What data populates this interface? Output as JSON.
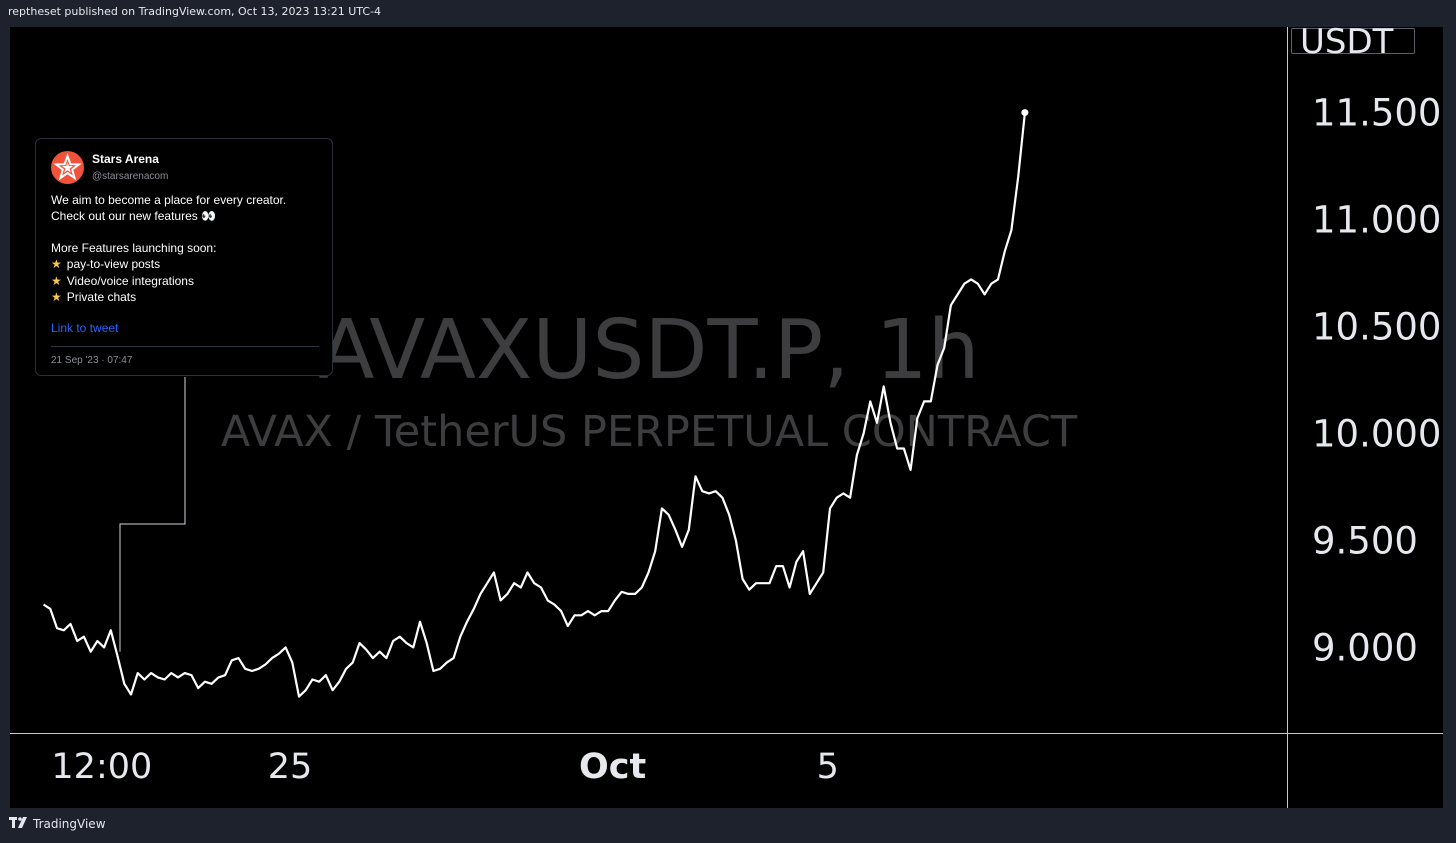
{
  "header": {
    "published_text": "reptheset published on TradingView.com, Oct 13, 2023 13:21 UTC-4"
  },
  "footer": {
    "brand": "TradingView",
    "logo_icon": "tradingview-logo-icon"
  },
  "watermark": {
    "symbol": "AVAXUSDT.P, 1h",
    "description": "AVAX / TetherUS PERPETUAL CONTRACT"
  },
  "price_scale": {
    "currency": "USDT"
  },
  "tweet": {
    "name": "Stars Arena",
    "handle": "@starsarenacom",
    "lines": [
      "We aim to become a place for every creator.",
      "Check out our new features 👀",
      "More Features launching soon:",
      "pay-to-view posts",
      "Video/voice integrations",
      "Private chats"
    ],
    "bullet_icon": "star-icon",
    "link_text": "Link to tweet",
    "date": "21 Sep '23 · 07:47",
    "avatar_icon": "stars-arena-logo-icon",
    "avatar_color": "#f0533a",
    "link_color": "#2962ff"
  },
  "colors": {
    "background": "#000000",
    "frame": "#1e222d",
    "line": "#ffffff",
    "watermark": "#3d3d3f"
  },
  "chart_data": {
    "type": "line",
    "title": "AVAXUSDT.P, 1h",
    "subtitle": "AVAX / TetherUS PERPETUAL CONTRACT",
    "ylabel": "USDT",
    "ylim": [
      8.6,
      11.9
    ],
    "y_ticks": [
      9.0,
      9.5,
      10.0,
      10.5,
      11.0,
      11.5
    ],
    "y_tick_labels": [
      "9.000",
      "9.500",
      "10.000",
      "10.500",
      "11.000",
      "11.500"
    ],
    "x_range": [
      "2023-09-19T19:00",
      "2023-10-13T13:00"
    ],
    "x_ticks": [
      {
        "label": "12:00",
        "t": "2023-09-21T12:00"
      },
      {
        "label": "25",
        "t": "2023-09-25T00:00"
      },
      {
        "label": "Oct",
        "t": "2023-10-01T00:00"
      },
      {
        "label": "5",
        "t": "2023-10-05T00:00"
      }
    ],
    "annotation": {
      "type": "tweet",
      "t": "2023-09-21T07:47"
    },
    "grid": false,
    "series": [
      {
        "values": [
          [
            "2023-09-20T10:00",
            9.2
          ],
          [
            "2023-09-20T13:00",
            9.18
          ],
          [
            "2023-09-20T16:00",
            9.09
          ],
          [
            "2023-09-20T19:00",
            9.08
          ],
          [
            "2023-09-20T22:00",
            9.11
          ],
          [
            "2023-09-21T01:00",
            9.03
          ],
          [
            "2023-09-21T04:00",
            9.05
          ],
          [
            "2023-09-21T07:00",
            8.98
          ],
          [
            "2023-09-21T10:00",
            9.03
          ],
          [
            "2023-09-21T13:00",
            9.0
          ],
          [
            "2023-09-21T16:00",
            9.08
          ],
          [
            "2023-09-21T19:00",
            8.96
          ],
          [
            "2023-09-21T22:00",
            8.83
          ],
          [
            "2023-09-22T01:00",
            8.78
          ],
          [
            "2023-09-22T04:00",
            8.88
          ],
          [
            "2023-09-22T07:00",
            8.85
          ],
          [
            "2023-09-22T10:00",
            8.88
          ],
          [
            "2023-09-22T13:00",
            8.86
          ],
          [
            "2023-09-22T16:00",
            8.85
          ],
          [
            "2023-09-22T19:00",
            8.88
          ],
          [
            "2023-09-22T22:00",
            8.86
          ],
          [
            "2023-09-23T01:00",
            8.88
          ],
          [
            "2023-09-23T04:00",
            8.87
          ],
          [
            "2023-09-23T07:00",
            8.81
          ],
          [
            "2023-09-23T10:00",
            8.84
          ],
          [
            "2023-09-23T13:00",
            8.83
          ],
          [
            "2023-09-23T16:00",
            8.86
          ],
          [
            "2023-09-23T19:00",
            8.87
          ],
          [
            "2023-09-23T22:00",
            8.94
          ],
          [
            "2023-09-24T01:00",
            8.95
          ],
          [
            "2023-09-24T04:00",
            8.9
          ],
          [
            "2023-09-24T07:00",
            8.89
          ],
          [
            "2023-09-24T10:00",
            8.9
          ],
          [
            "2023-09-24T13:00",
            8.92
          ],
          [
            "2023-09-24T16:00",
            8.95
          ],
          [
            "2023-09-24T19:00",
            8.97
          ],
          [
            "2023-09-24T22:00",
            9.0
          ],
          [
            "2023-09-25T01:00",
            8.93
          ],
          [
            "2023-09-25T04:00",
            8.77
          ],
          [
            "2023-09-25T07:00",
            8.8
          ],
          [
            "2023-09-25T10:00",
            8.85
          ],
          [
            "2023-09-25T13:00",
            8.84
          ],
          [
            "2023-09-25T16:00",
            8.87
          ],
          [
            "2023-09-25T19:00",
            8.8
          ],
          [
            "2023-09-25T22:00",
            8.84
          ],
          [
            "2023-09-26T01:00",
            8.9
          ],
          [
            "2023-09-26T04:00",
            8.93
          ],
          [
            "2023-09-26T07:00",
            9.02
          ],
          [
            "2023-09-26T10:00",
            8.99
          ],
          [
            "2023-09-26T13:00",
            8.95
          ],
          [
            "2023-09-26T16:00",
            8.98
          ],
          [
            "2023-09-26T19:00",
            8.95
          ],
          [
            "2023-09-26T22:00",
            9.03
          ],
          [
            "2023-09-27T01:00",
            9.05
          ],
          [
            "2023-09-27T04:00",
            9.02
          ],
          [
            "2023-09-27T07:00",
            9.0
          ],
          [
            "2023-09-27T10:00",
            9.12
          ],
          [
            "2023-09-27T13:00",
            9.02
          ],
          [
            "2023-09-27T16:00",
            8.89
          ],
          [
            "2023-09-27T19:00",
            8.9
          ],
          [
            "2023-09-27T22:00",
            8.93
          ],
          [
            "2023-09-28T01:00",
            8.95
          ],
          [
            "2023-09-28T04:00",
            9.05
          ],
          [
            "2023-09-28T07:00",
            9.12
          ],
          [
            "2023-09-28T10:00",
            9.18
          ],
          [
            "2023-09-28T13:00",
            9.25
          ],
          [
            "2023-09-28T16:00",
            9.3
          ],
          [
            "2023-09-28T19:00",
            9.35
          ],
          [
            "2023-09-28T22:00",
            9.22
          ],
          [
            "2023-09-29T01:00",
            9.25
          ],
          [
            "2023-09-29T04:00",
            9.3
          ],
          [
            "2023-09-29T07:00",
            9.28
          ],
          [
            "2023-09-29T10:00",
            9.35
          ],
          [
            "2023-09-29T13:00",
            9.3
          ],
          [
            "2023-09-29T16:00",
            9.28
          ],
          [
            "2023-09-29T19:00",
            9.22
          ],
          [
            "2023-09-29T22:00",
            9.2
          ],
          [
            "2023-09-30T01:00",
            9.17
          ],
          [
            "2023-09-30T04:00",
            9.1
          ],
          [
            "2023-09-30T07:00",
            9.15
          ],
          [
            "2023-09-30T10:00",
            9.15
          ],
          [
            "2023-09-30T13:00",
            9.17
          ],
          [
            "2023-09-30T16:00",
            9.15
          ],
          [
            "2023-09-30T19:00",
            9.17
          ],
          [
            "2023-09-30T22:00",
            9.17
          ],
          [
            "2023-10-01T01:00",
            9.22
          ],
          [
            "2023-10-01T04:00",
            9.26
          ],
          [
            "2023-10-01T07:00",
            9.25
          ],
          [
            "2023-10-01T10:00",
            9.25
          ],
          [
            "2023-10-01T13:00",
            9.28
          ],
          [
            "2023-10-01T16:00",
            9.35
          ],
          [
            "2023-10-01T19:00",
            9.45
          ],
          [
            "2023-10-01T22:00",
            9.65
          ],
          [
            "2023-10-02T01:00",
            9.62
          ],
          [
            "2023-10-02T04:00",
            9.55
          ],
          [
            "2023-10-02T07:00",
            9.47
          ],
          [
            "2023-10-02T10:00",
            9.55
          ],
          [
            "2023-10-02T13:00",
            9.8
          ],
          [
            "2023-10-02T16:00",
            9.73
          ],
          [
            "2023-10-02T19:00",
            9.72
          ],
          [
            "2023-10-02T22:00",
            9.73
          ],
          [
            "2023-10-03T01:00",
            9.7
          ],
          [
            "2023-10-03T04:00",
            9.62
          ],
          [
            "2023-10-03T07:00",
            9.5
          ],
          [
            "2023-10-03T10:00",
            9.32
          ],
          [
            "2023-10-03T13:00",
            9.27
          ],
          [
            "2023-10-03T16:00",
            9.3
          ],
          [
            "2023-10-03T19:00",
            9.3
          ],
          [
            "2023-10-03T22:00",
            9.3
          ],
          [
            "2023-10-04T01:00",
            9.38
          ],
          [
            "2023-10-04T04:00",
            9.38
          ],
          [
            "2023-10-04T07:00",
            9.28
          ],
          [
            "2023-10-04T10:00",
            9.4
          ],
          [
            "2023-10-04T13:00",
            9.45
          ],
          [
            "2023-10-04T16:00",
            9.25
          ],
          [
            "2023-10-04T19:00",
            9.3
          ],
          [
            "2023-10-04T22:00",
            9.35
          ],
          [
            "2023-10-05T01:00",
            9.65
          ],
          [
            "2023-10-05T04:00",
            9.7
          ],
          [
            "2023-10-05T07:00",
            9.72
          ],
          [
            "2023-10-05T10:00",
            9.7
          ],
          [
            "2023-10-05T13:00",
            9.9
          ],
          [
            "2023-10-05T16:00",
            10.0
          ],
          [
            "2023-10-05T19:00",
            10.15
          ],
          [
            "2023-10-05T22:00",
            10.05
          ],
          [
            "2023-10-06T01:00",
            10.22
          ],
          [
            "2023-10-06T04:00",
            10.05
          ],
          [
            "2023-10-06T07:00",
            9.93
          ],
          [
            "2023-10-06T10:00",
            9.93
          ],
          [
            "2023-10-06T13:00",
            9.83
          ],
          [
            "2023-10-06T16:00",
            10.07
          ],
          [
            "2023-10-06T19:00",
            10.15
          ],
          [
            "2023-10-06T22:00",
            10.15
          ],
          [
            "2023-10-07T01:00",
            10.32
          ],
          [
            "2023-10-07T04:00",
            10.4
          ],
          [
            "2023-10-07T07:00",
            10.6
          ],
          [
            "2023-10-07T10:00",
            10.65
          ],
          [
            "2023-10-07T13:00",
            10.7
          ],
          [
            "2023-10-07T16:00",
            10.72
          ],
          [
            "2023-10-07T19:00",
            10.7
          ],
          [
            "2023-10-07T22:00",
            10.65
          ],
          [
            "2023-10-08T01:00",
            10.7
          ],
          [
            "2023-10-08T04:00",
            10.72
          ],
          [
            "2023-10-08T07:00",
            10.85
          ],
          [
            "2023-10-08T10:00",
            10.95
          ],
          [
            "2023-10-08T13:00",
            11.2
          ],
          [
            "2023-10-08T16:00",
            11.5
          ]
        ]
      }
    ]
  }
}
